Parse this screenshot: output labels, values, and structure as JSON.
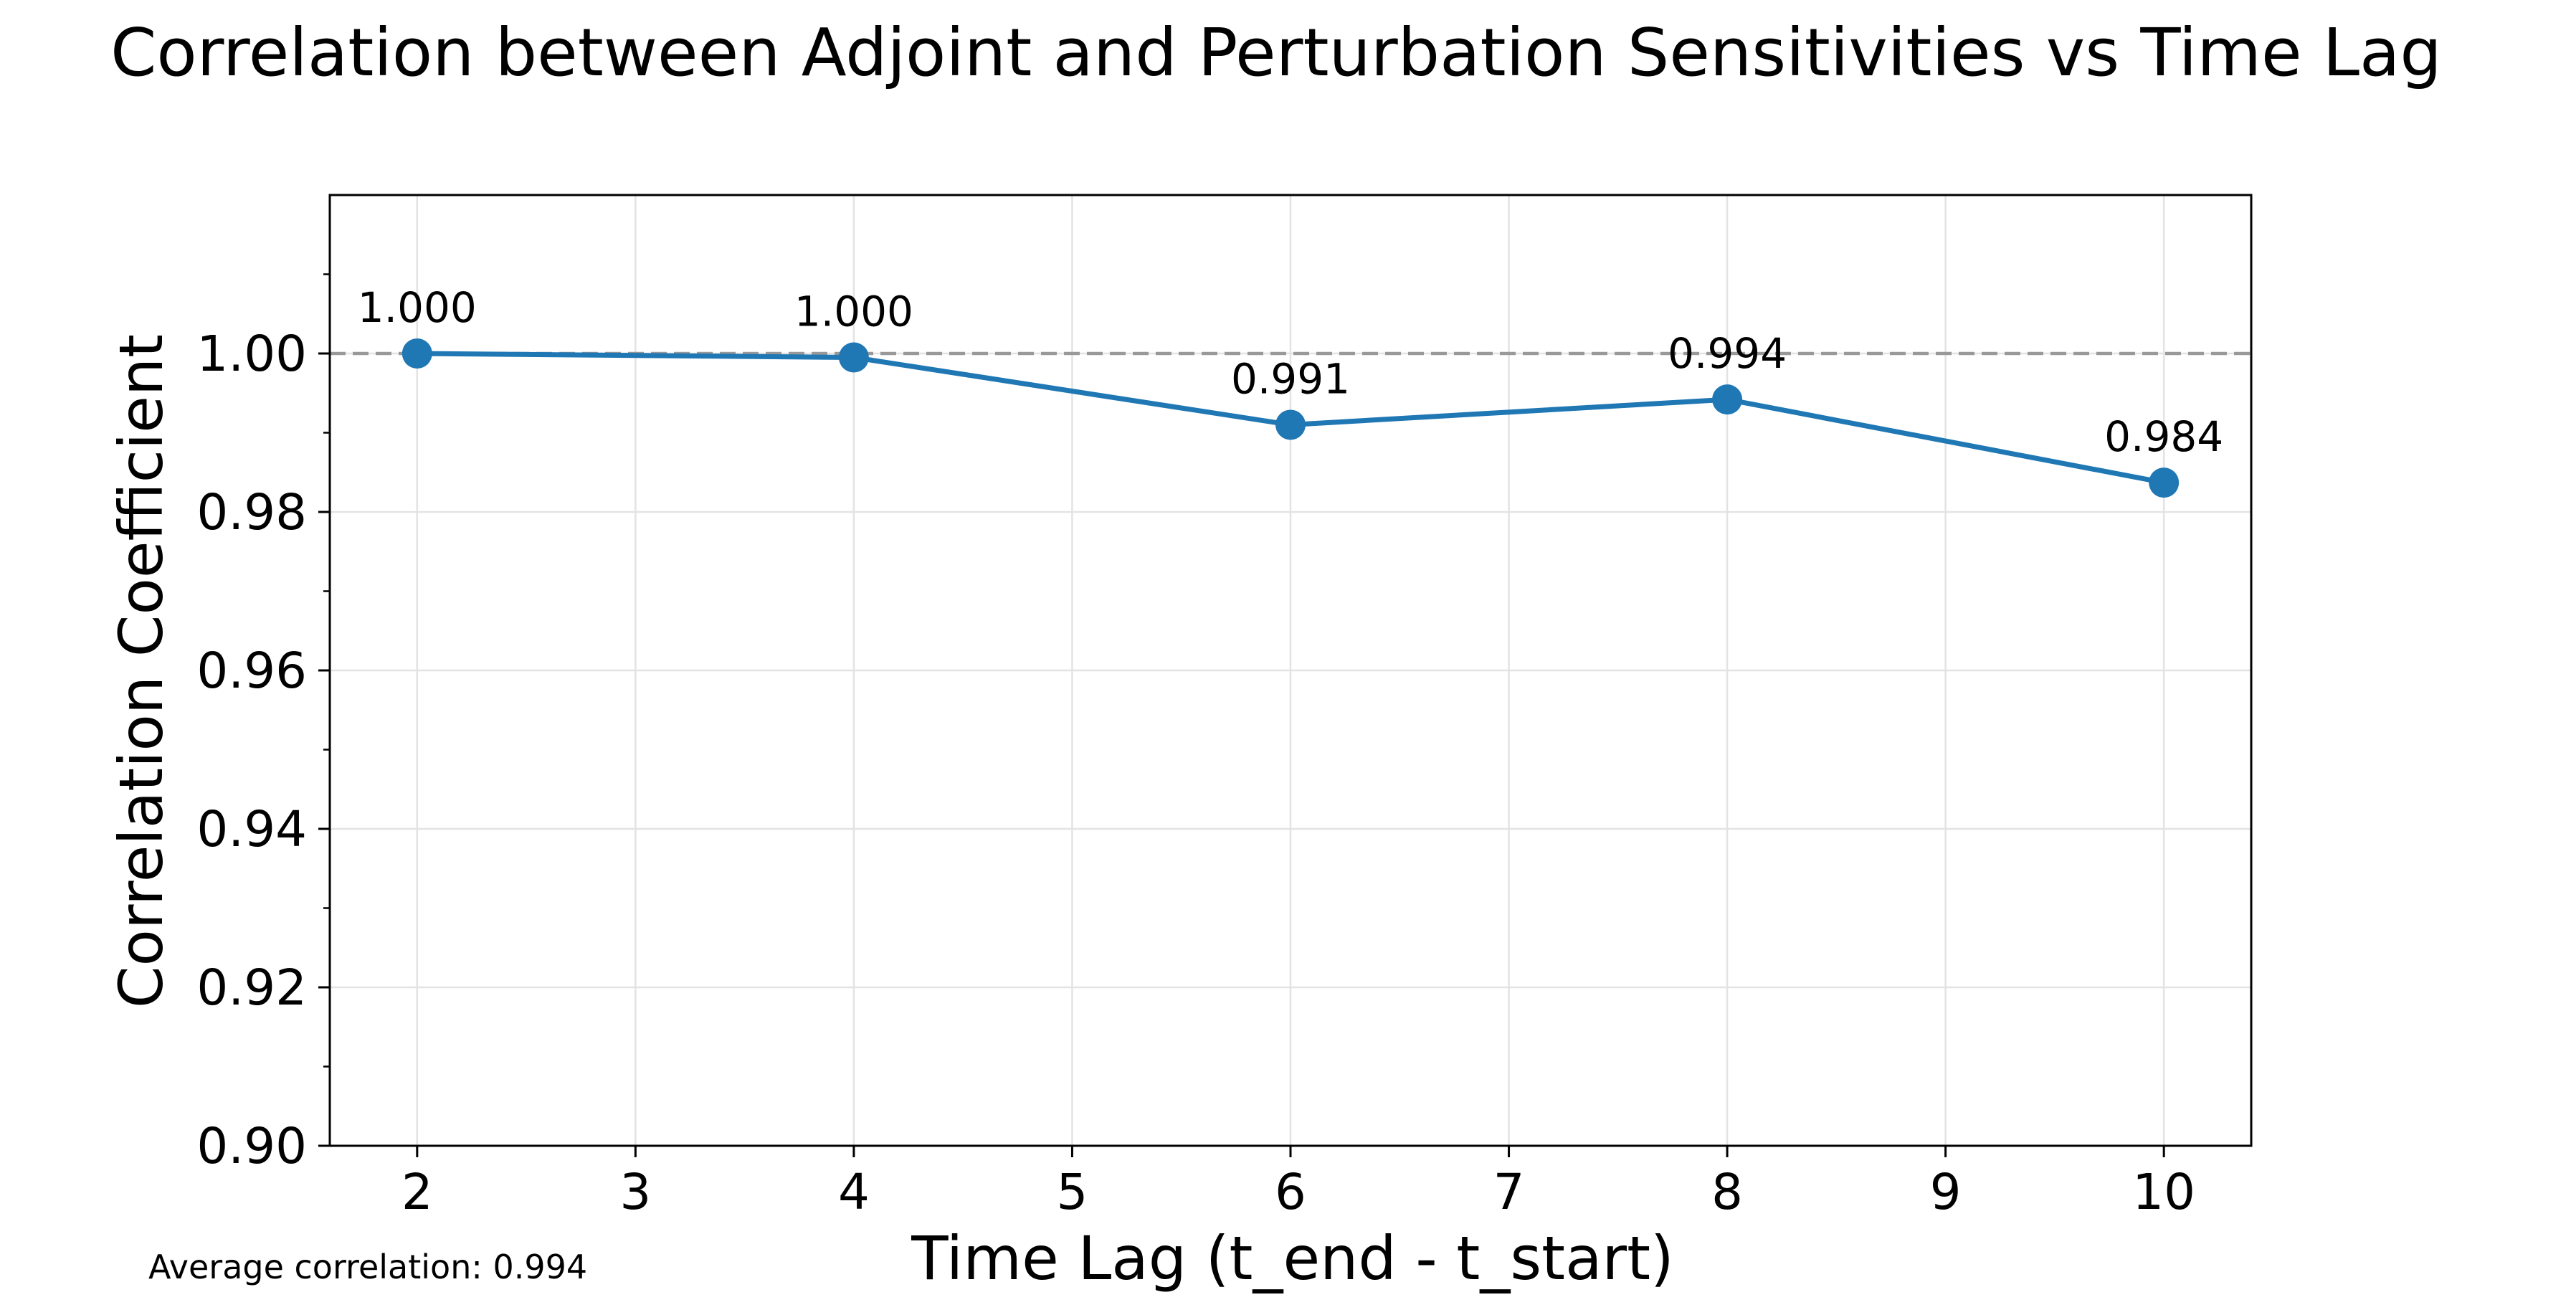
{
  "chart_data": {
    "type": "line",
    "title": "Correlation between Adjoint and Perturbation Sensitivities vs Time Lag",
    "xlabel": "Time Lag (t_end - t_start)",
    "ylabel": "Correlation Coefficient",
    "x": [
      2,
      4,
      6,
      8,
      10
    ],
    "series": [
      {
        "values": [
          1.0,
          0.9995,
          0.991,
          0.9942,
          0.9837
        ],
        "labels": [
          "1.000",
          "1.000",
          "0.991",
          "0.994",
          "0.984"
        ],
        "color": "#1f77b4",
        "marker": "circle"
      }
    ],
    "xlim": [
      1.6,
      10.4
    ],
    "ylim": [
      0.9,
      1.02
    ],
    "xticks": [
      2,
      3,
      4,
      5,
      6,
      7,
      8,
      9,
      10
    ],
    "xtick_labels": [
      "2",
      "3",
      "4",
      "5",
      "6",
      "7",
      "8",
      "9",
      "10"
    ],
    "yticks": [
      0.9,
      0.92,
      0.94,
      0.96,
      0.98,
      1.0
    ],
    "ytick_labels": [
      "0.90",
      "0.92",
      "0.94",
      "0.96",
      "0.98",
      "1.00"
    ],
    "y_minor_step": 0.01,
    "reference_line": {
      "y": 1.0,
      "style": "dashed",
      "color": "#999999"
    },
    "grid": true,
    "annotation": "Average correlation: 0.994"
  }
}
